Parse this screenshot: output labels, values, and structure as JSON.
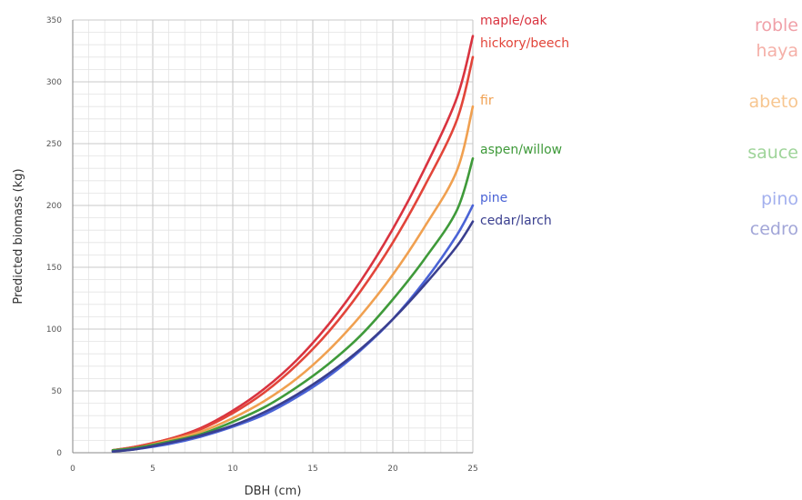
{
  "chart_data": {
    "type": "line",
    "title": "",
    "xlabel": "DBH (cm)",
    "ylabel": "Predicted biomass (kg)",
    "xlim": [
      0,
      25
    ],
    "ylim": [
      0,
      350
    ],
    "x_ticks": [
      0,
      5,
      10,
      15,
      20,
      25
    ],
    "y_ticks": [
      0,
      50,
      100,
      150,
      200,
      250,
      300,
      350
    ],
    "grid": true,
    "legend": "labels at right end of lines",
    "series": [
      {
        "name": "maple/oak",
        "translation": "roble",
        "color": "#d9333f",
        "translation_color": "#f0a0a8",
        "x": [
          2.5,
          4,
          6,
          8,
          10,
          12,
          14,
          16,
          18,
          20,
          22,
          24,
          25
        ],
        "y": [
          2,
          5,
          11,
          20,
          34,
          52,
          75,
          104,
          139,
          181,
          230,
          287,
          337
        ]
      },
      {
        "name": "hickory/beech",
        "translation": "haya",
        "color": "#e2453a",
        "translation_color": "#f5b0a8",
        "x": [
          2.5,
          4,
          6,
          8,
          10,
          12,
          14,
          16,
          18,
          20,
          22,
          24,
          25
        ],
        "y": [
          2,
          5,
          11,
          19,
          32,
          49,
          71,
          98,
          131,
          170,
          216,
          269,
          320
        ]
      },
      {
        "name": "fir",
        "translation": "abeto",
        "color": "#f0a050",
        "translation_color": "#f7c690",
        "x": [
          2.5,
          4,
          6,
          8,
          10,
          12,
          14,
          16,
          18,
          20,
          22,
          24,
          25
        ],
        "y": [
          2,
          4,
          10,
          17,
          28,
          42,
          60,
          83,
          111,
          144,
          183,
          228,
          280
        ]
      },
      {
        "name": "aspen/willow",
        "translation": "sauce",
        "color": "#3f9a3a",
        "translation_color": "#9fd49a",
        "x": [
          2.5,
          4,
          6,
          8,
          10,
          12,
          14,
          16,
          18,
          20,
          22,
          24,
          25
        ],
        "y": [
          2,
          4,
          9,
          15,
          25,
          37,
          53,
          72,
          95,
          124,
          157,
          196,
          238
        ]
      },
      {
        "name": "pine",
        "translation": "pino",
        "color": "#4a63d6",
        "translation_color": "#a3b0ee",
        "x": [
          2.5,
          4,
          6,
          8,
          10,
          12,
          14,
          16,
          18,
          20,
          22,
          24,
          25
        ],
        "y": [
          1,
          3,
          7,
          13,
          21,
          31,
          45,
          62,
          83,
          108,
          139,
          176,
          200
        ]
      },
      {
        "name": "cedar/larch",
        "translation": "cedro",
        "color": "#3a3f8f",
        "translation_color": "#a2a6d8",
        "x": [
          2.5,
          4,
          6,
          8,
          10,
          12,
          14,
          16,
          18,
          20,
          22,
          24,
          25
        ],
        "y": [
          1,
          3,
          8,
          14,
          22,
          33,
          47,
          64,
          84,
          108,
          136,
          167,
          187
        ]
      }
    ]
  }
}
